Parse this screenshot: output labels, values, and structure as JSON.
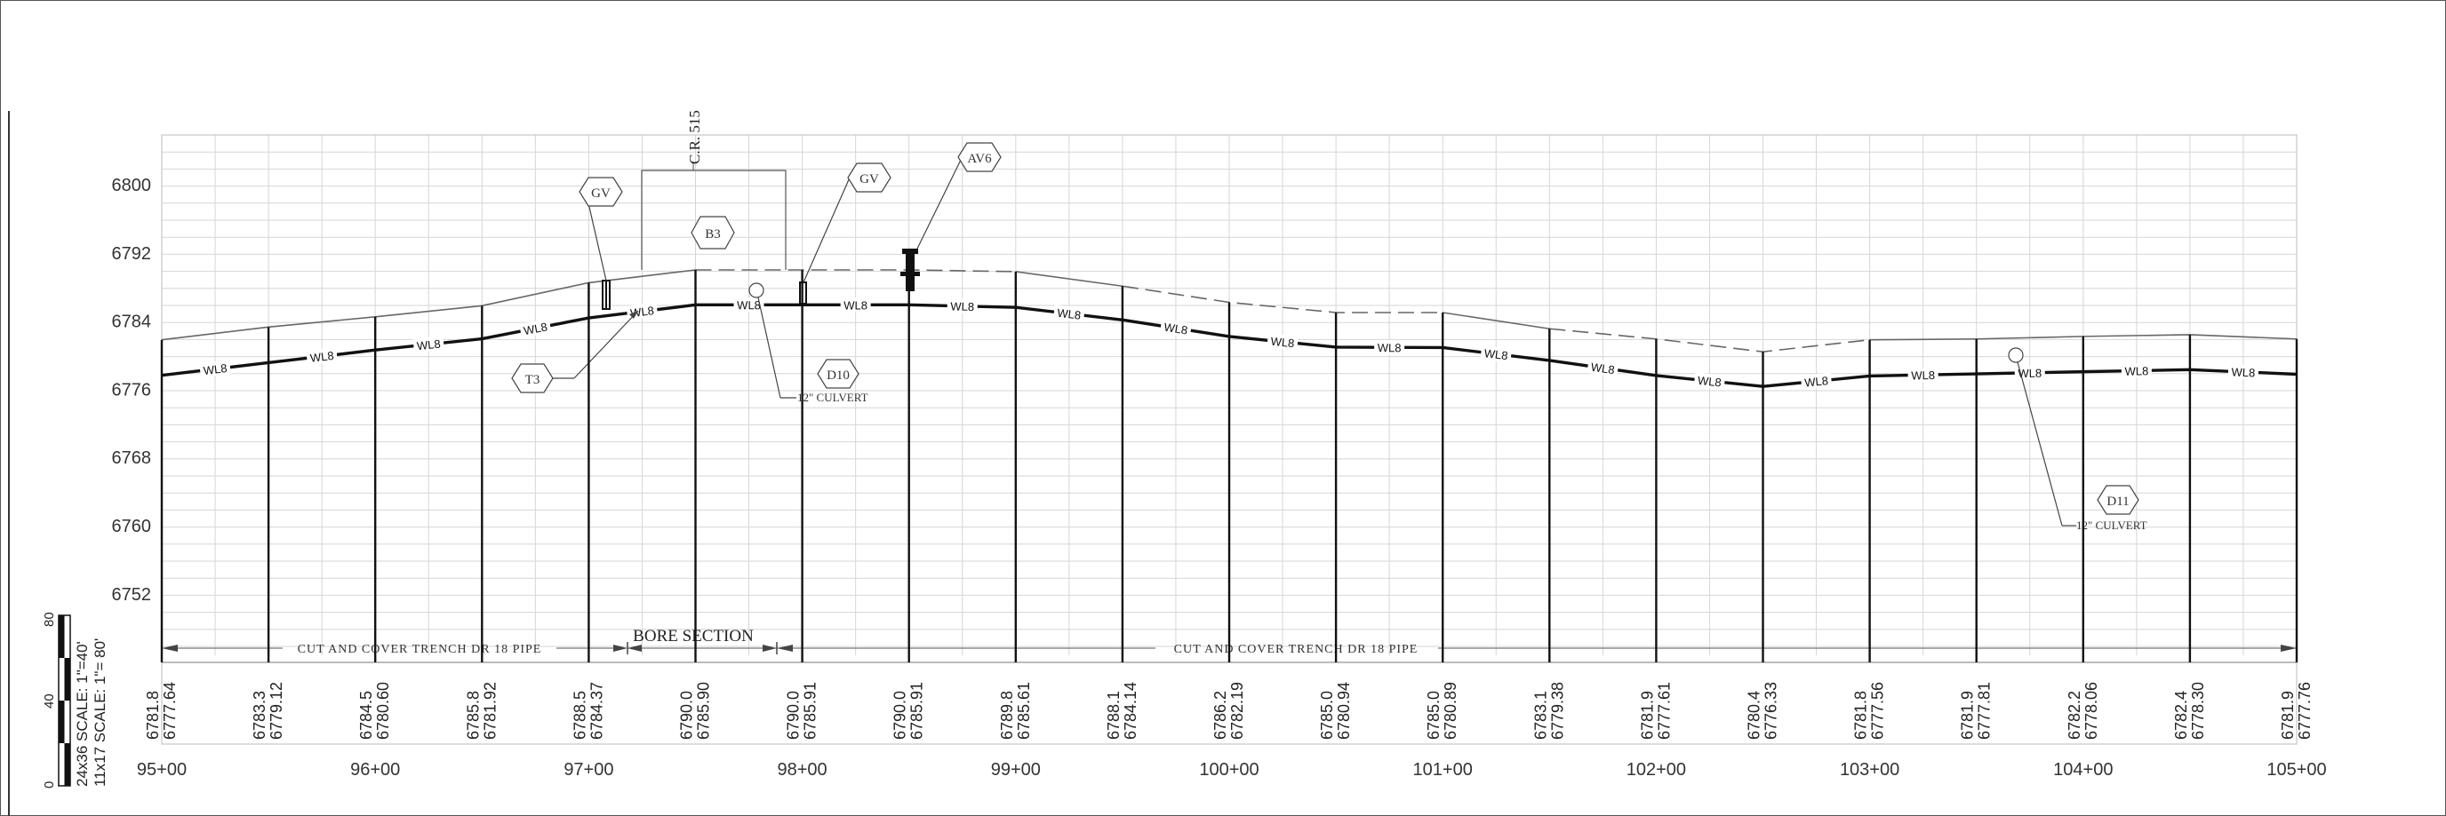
{
  "sheet": {
    "frame": "border",
    "scale_bar": {
      "ticks": [
        "0",
        "40",
        "80"
      ],
      "scale_24x36": "24x36 SCALE: 1\"=40'",
      "scale_11x17": "11x17 SCALE: 1\"= 80'"
    }
  },
  "profile": {
    "elevation_labels": [
      "6800",
      "6792",
      "6784",
      "6776",
      "6768",
      "6760",
      "6752"
    ],
    "station_labels": [
      "95+00",
      "96+00",
      "97+00",
      "98+00",
      "99+00",
      "100+00",
      "101+00",
      "102+00",
      "103+00",
      "104+00",
      "105+00"
    ],
    "elevation_columns": [
      {
        "existing": "6781.8",
        "proposed": "6777.64"
      },
      {
        "existing": "6783.3",
        "proposed": "6779.12"
      },
      {
        "existing": "6784.5",
        "proposed": "6780.60"
      },
      {
        "existing": "6785.8",
        "proposed": "6781.92"
      },
      {
        "existing": "6788.5",
        "proposed": "6784.37"
      },
      {
        "existing": "6790.0",
        "proposed": "6785.90"
      },
      {
        "existing": "6790.0",
        "proposed": "6785.91"
      },
      {
        "existing": "6790.0",
        "proposed": "6785.91"
      },
      {
        "existing": "6789.8",
        "proposed": "6785.61"
      },
      {
        "existing": "6788.1",
        "proposed": "6784.14"
      },
      {
        "existing": "6786.2",
        "proposed": "6782.19"
      },
      {
        "existing": "6785.0",
        "proposed": "6780.94"
      },
      {
        "existing": "6785.0",
        "proposed": "6780.89"
      },
      {
        "existing": "6783.1",
        "proposed": "6779.38"
      },
      {
        "existing": "6781.9",
        "proposed": "6777.61"
      },
      {
        "existing": "6780.4",
        "proposed": "6776.33"
      },
      {
        "existing": "6781.8",
        "proposed": "6777.56"
      },
      {
        "existing": "6781.9",
        "proposed": "6777.81"
      },
      {
        "existing": "6782.2",
        "proposed": "6778.06"
      },
      {
        "existing": "6782.4",
        "proposed": "6778.30"
      },
      {
        "existing": "6781.9",
        "proposed": "6777.76"
      }
    ],
    "pipe_label": "WL8",
    "road_label": "C.R. 515",
    "callouts": {
      "gv_left": "GV",
      "gv_right": "GV",
      "av6": "AV6",
      "b3": "B3",
      "t3": "T3",
      "d10": "D10",
      "d11": "D11"
    },
    "culvert_left": "12\" CULVERT",
    "culvert_right": "12\" CULVERT",
    "trench_left": "CUT AND COVER TRENCH DR 18 PIPE",
    "trench_right": "CUT AND COVER TRENCH DR 18 PIPE",
    "bore_label": "BORE SECTION"
  }
}
